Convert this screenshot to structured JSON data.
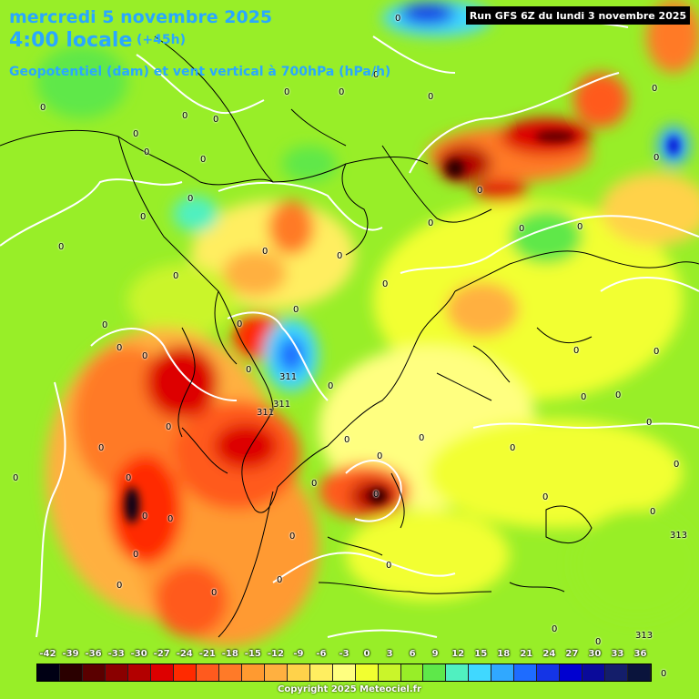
{
  "header": {
    "date": "mercredi 5 novembre 2025",
    "time": "4:00 locale",
    "lead": "(+45h)",
    "product": "Geopotentiel (dam) et vent vertical à 700hPa (hPa/h)",
    "run": "Run GFS 6Z du lundi 3 novembre 2025"
  },
  "legend": {
    "labels": [
      "-42",
      "-39",
      "-36",
      "-33",
      "-30",
      "-27",
      "-24",
      "-21",
      "-18",
      "-15",
      "-12",
      "-9",
      "-6",
      "-3",
      "0",
      "3",
      "6",
      "9",
      "12",
      "15",
      "18",
      "21",
      "24",
      "27",
      "30",
      "33",
      "36"
    ],
    "colors": [
      "#000014",
      "#2a0000",
      "#5a0000",
      "#8a0000",
      "#b30000",
      "#dd0000",
      "#ff2a00",
      "#ff5a1e",
      "#ff7a28",
      "#ff9a30",
      "#ffb040",
      "#ffd24a",
      "#ffee60",
      "#ffff80",
      "#f2ff30",
      "#caf52a",
      "#98ee28",
      "#5ee84a",
      "#50f0c0",
      "#40d8ff",
      "#30a8ff",
      "#1e6cff",
      "#1434e6",
      "#0000d0",
      "#0a0a9a",
      "#141e6a",
      "#0a143c"
    ]
  },
  "copyright": "Copyright 2025 Meteociel.fr",
  "map_values": [
    {
      "label": "0"
    },
    {
      "label": "0"
    },
    {
      "label": "0"
    },
    {
      "label": "0"
    },
    {
      "label": "0"
    },
    {
      "label": "0"
    },
    {
      "label": "0"
    },
    {
      "label": "0"
    },
    {
      "label": "0"
    },
    {
      "label": "0"
    },
    {
      "label": "0"
    },
    {
      "label": "0"
    },
    {
      "label": "0"
    },
    {
      "label": "0"
    },
    {
      "label": "0"
    },
    {
      "label": "0"
    },
    {
      "label": "0"
    },
    {
      "label": "0"
    },
    {
      "label": "0"
    },
    {
      "label": "0"
    },
    {
      "label": "0"
    },
    {
      "label": "0"
    },
    {
      "label": "0"
    },
    {
      "label": "0"
    },
    {
      "label": "0"
    },
    {
      "label": "0"
    },
    {
      "label": "0"
    },
    {
      "label": "0"
    },
    {
      "label": "0"
    },
    {
      "label": "0"
    },
    {
      "label": "311"
    },
    {
      "label": "311"
    },
    {
      "label": "311"
    },
    {
      "label": "313"
    },
    {
      "label": "313"
    }
  ]
}
